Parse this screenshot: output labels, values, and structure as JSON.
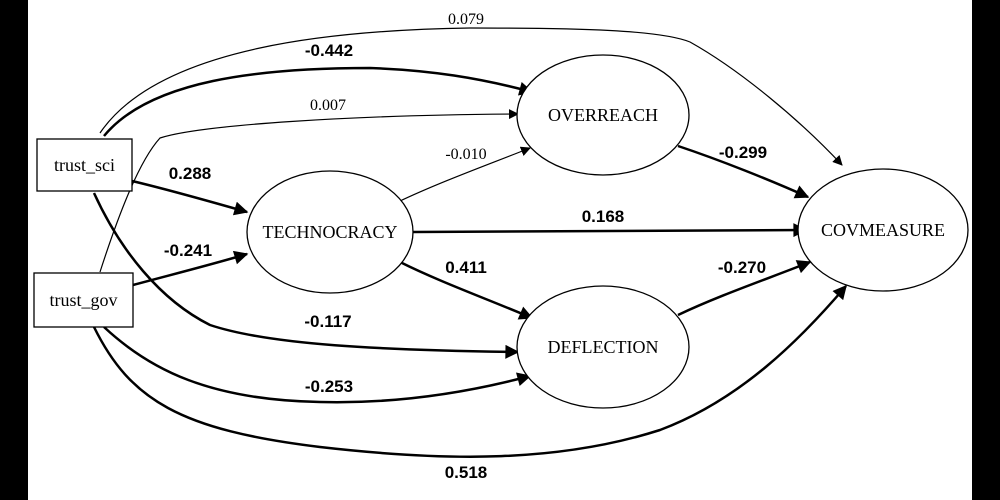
{
  "nodes": {
    "trust_sci": {
      "label": "trust_sci",
      "shape": "box"
    },
    "trust_gov": {
      "label": "trust_gov",
      "shape": "box"
    },
    "technocracy": {
      "label": "TECHNOCRACY",
      "shape": "ellipse"
    },
    "overreach": {
      "label": "OVERREACH",
      "shape": "ellipse"
    },
    "deflection": {
      "label": "DEFLECTION",
      "shape": "ellipse"
    },
    "covmeasure": {
      "label": "COVMEASURE",
      "shape": "ellipse"
    }
  },
  "edges": [
    {
      "id": "sci_cov",
      "from": "trust_sci",
      "to": "covmeasure",
      "coef": "0.079",
      "significant": false
    },
    {
      "id": "sci_over",
      "from": "trust_sci",
      "to": "overreach",
      "coef": "-0.442",
      "significant": true
    },
    {
      "id": "gov_over",
      "from": "trust_gov",
      "to": "overreach",
      "coef": "0.007",
      "significant": false
    },
    {
      "id": "tech_over",
      "from": "technocracy",
      "to": "overreach",
      "coef": "-0.010",
      "significant": false
    },
    {
      "id": "sci_tech",
      "from": "trust_sci",
      "to": "technocracy",
      "coef": "0.288",
      "significant": true
    },
    {
      "id": "over_cov",
      "from": "overreach",
      "to": "covmeasure",
      "coef": "-0.299",
      "significant": true
    },
    {
      "id": "tech_cov",
      "from": "technocracy",
      "to": "covmeasure",
      "coef": "0.168",
      "significant": true
    },
    {
      "id": "gov_tech",
      "from": "trust_gov",
      "to": "technocracy",
      "coef": "-0.241",
      "significant": true
    },
    {
      "id": "tech_defl",
      "from": "technocracy",
      "to": "deflection",
      "coef": "0.411",
      "significant": true
    },
    {
      "id": "defl_cov",
      "from": "deflection",
      "to": "covmeasure",
      "coef": "-0.270",
      "significant": true
    },
    {
      "id": "sci_defl",
      "from": "trust_sci",
      "to": "deflection",
      "coef": "-0.117",
      "significant": true
    },
    {
      "id": "gov_defl",
      "from": "trust_gov",
      "to": "deflection",
      "coef": "-0.253",
      "significant": true
    },
    {
      "id": "gov_cov",
      "from": "trust_gov",
      "to": "covmeasure",
      "coef": "0.518",
      "significant": true
    }
  ],
  "colors": {
    "background": "#ffffff",
    "frame": "#000000",
    "ink": "#000000"
  }
}
